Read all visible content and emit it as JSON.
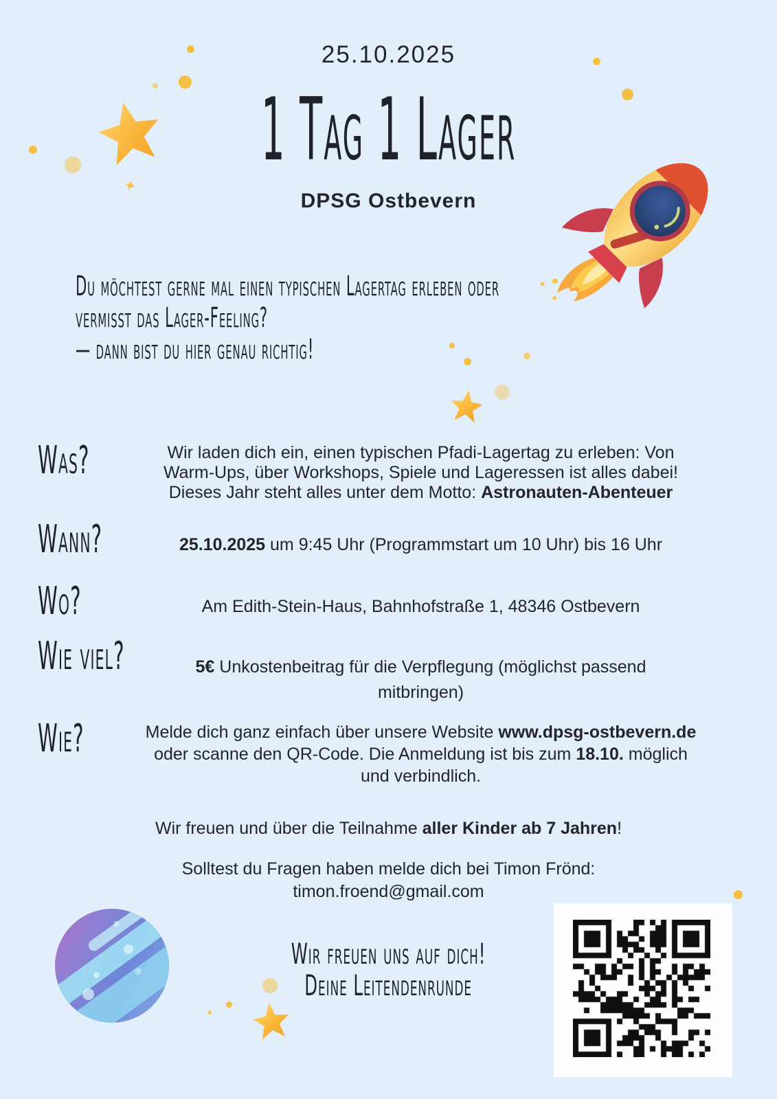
{
  "colors": {
    "background": "#e2eef9",
    "text": "#23252a",
    "heading": "#1f2329",
    "star_yellow": "#f9b63a",
    "dot_yellow": "#f5bf42",
    "rocket_red": "#d8404c",
    "rocket_yellow": "#fcd66b",
    "window_navy": "#22365f",
    "planet_purple": "#a976cb",
    "planet_blue": "#6e86d6"
  },
  "header": {
    "date": "25.10.2025",
    "title": "1 Tag 1 Lager",
    "subtitle": "DPSG Ostbevern"
  },
  "intro": {
    "line1": "Du möchtest gerne mal einen typischen Lagertag erleben oder",
    "line2": "vermisst das Lager-Feeling?",
    "line3": "— dann bist du hier genau richtig!"
  },
  "sections": [
    {
      "id": "was",
      "label": "Was?",
      "lines": [
        [
          {
            "t": "Wir laden dich ein, einen typischen Pfadi-Lagertag zu erleben: Von"
          }
        ],
        [
          {
            "t": "Warm-Ups, über Workshops, Spiele und Lageressen ist alles dabei!"
          }
        ],
        [
          {
            "t": "Dieses Jahr steht alles unter dem Motto: "
          },
          {
            "t": "Astronauten-Abenteuer",
            "b": true
          }
        ]
      ]
    },
    {
      "id": "wann",
      "label": "Wann?",
      "lines": [
        [
          {
            "t": "25.10.2025",
            "b": true
          },
          {
            "t": " um 9:45 Uhr (Programmstart um 10 Uhr) bis 16 Uhr"
          }
        ]
      ]
    },
    {
      "id": "wo",
      "label": "Wo?",
      "lines": [
        [
          {
            "t": "Am Edith-Stein-Haus, Bahnhofstraße 1, 48346 Ostbevern"
          }
        ]
      ]
    },
    {
      "id": "wie_viel",
      "label": "Wie viel?",
      "lines": [
        [
          {
            "t": "5€",
            "b": true
          },
          {
            "t": " Unkostenbeitrag für die Verpflegung (möglichst passend"
          }
        ],
        [
          {
            "t": "mitbringen)"
          }
        ]
      ]
    },
    {
      "id": "wie",
      "label": "Wie?",
      "lines": [
        [
          {
            "t": "Melde dich ganz einfach über unsere Website "
          },
          {
            "t": "www.dpsg-ostbevern.de",
            "b": true
          }
        ],
        [
          {
            "t": "oder scanne den QR-Code. Die Anmeldung ist bis zum "
          },
          {
            "t": "18.10.",
            "b": true
          },
          {
            "t": " möglich"
          }
        ],
        [
          {
            "t": "und verbindlich."
          }
        ]
      ]
    }
  ],
  "footer": {
    "participation_lines": [
      [
        {
          "t": "Wir freuen und über die Teilnahme "
        },
        {
          "t": "aller Kinder ab 7 Jahren",
          "b": true
        },
        {
          "t": "!"
        }
      ]
    ],
    "questions_lines": [
      [
        {
          "t": "Solltest du Fragen haben melde dich bei Timon Frönd:"
        }
      ],
      [
        {
          "t": "timon.froend@gmail.com"
        }
      ]
    ],
    "closing_line1": "Wir freuen uns auf dich!",
    "closing_line2": "Deine Leitendenrunde"
  },
  "decor": {
    "rocket": "rocket-illustration",
    "planet": "planet-illustration",
    "star": "star-illustration",
    "sparkle": "✦",
    "qr": "qr-code"
  }
}
